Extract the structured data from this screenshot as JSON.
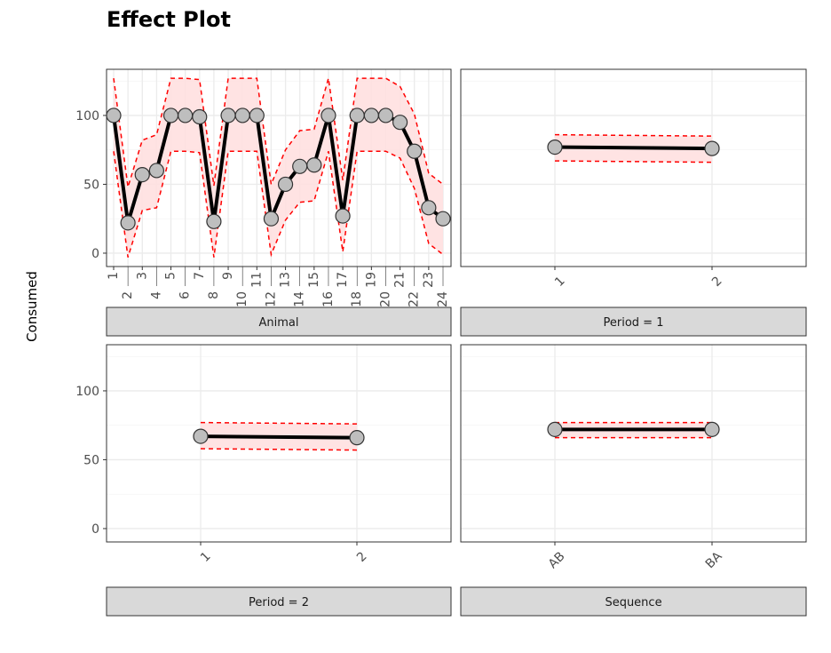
{
  "chart_data": {
    "type": "line",
    "title": "Effect Plot",
    "ylabel": "Consumed",
    "ylim": [
      -9.7,
      133.5
    ],
    "yticks": [
      0,
      50,
      100
    ],
    "colors": {
      "line": "#000000",
      "ci_line": "#ff0000",
      "ci_fill": "#ffe0e0",
      "point": "#bebebe",
      "strip": "#d9d9d9"
    },
    "panels": [
      {
        "strip": "Animal",
        "categories": [
          "1",
          "2",
          "3",
          "4",
          "5",
          "6",
          "7",
          "8",
          "9",
          "10",
          "11",
          "12",
          "13",
          "14",
          "15",
          "16",
          "17",
          "18",
          "19",
          "20",
          "21",
          "22",
          "23",
          "24"
        ],
        "values": [
          100,
          22,
          57,
          60,
          100,
          100,
          99,
          23,
          100,
          100,
          100,
          25,
          50,
          63,
          64,
          100,
          27,
          100,
          100,
          100,
          95,
          74,
          33,
          25
        ],
        "lower": [
          74,
          -3,
          31,
          33,
          74,
          74,
          73,
          -3,
          74,
          74,
          74,
          -1,
          24,
          37,
          38,
          74,
          1,
          74,
          74,
          74,
          69,
          47,
          7,
          -1
        ],
        "upper": [
          127,
          48,
          82,
          86,
          127,
          127,
          126,
          49,
          127,
          127,
          127,
          50,
          75,
          89,
          90,
          127,
          53,
          127,
          127,
          127,
          121,
          101,
          58,
          50
        ]
      },
      {
        "strip": "Period = 1",
        "categories": [
          "1",
          "2"
        ],
        "values": [
          77,
          76
        ],
        "lower": [
          67,
          66
        ],
        "upper": [
          86,
          85
        ]
      },
      {
        "strip": "Period = 2",
        "categories": [
          "1",
          "2"
        ],
        "values": [
          67,
          66
        ],
        "lower": [
          58,
          57
        ],
        "upper": [
          77,
          76
        ]
      },
      {
        "strip": "Sequence",
        "categories": [
          "AB",
          "BA"
        ],
        "values": [
          72,
          72
        ],
        "lower": [
          66,
          66
        ],
        "upper": [
          77,
          77
        ]
      }
    ]
  }
}
